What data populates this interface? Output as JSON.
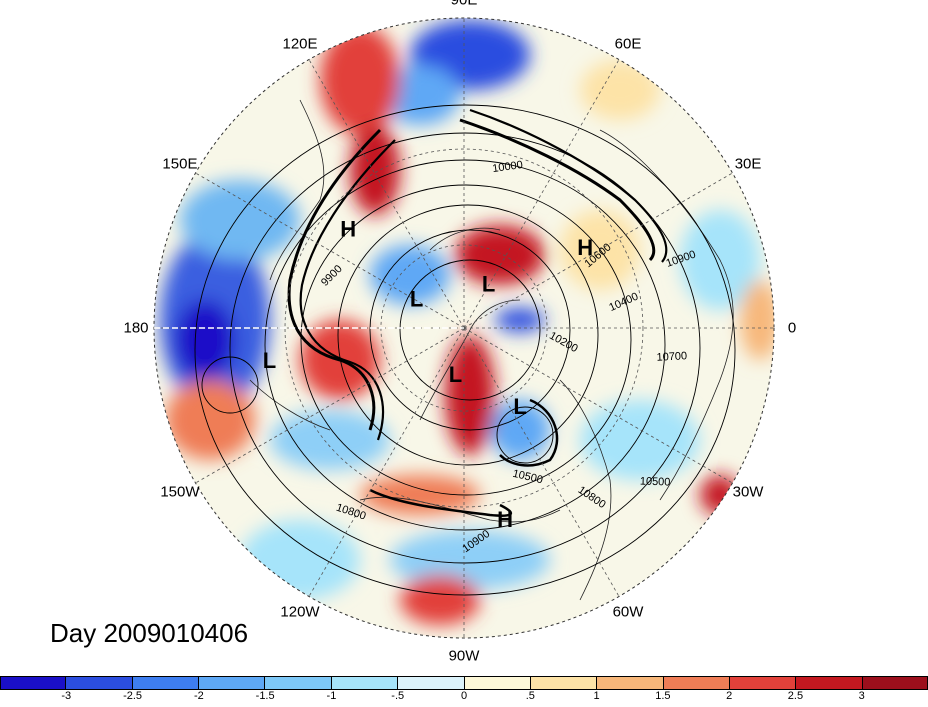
{
  "map": {
    "title": "Day 2009010406",
    "projection": "north polar stereographic",
    "longitude_labels": [
      {
        "text": "90E",
        "lon": 90
      },
      {
        "text": "60E",
        "lon": 60
      },
      {
        "text": "30E",
        "lon": 30
      },
      {
        "text": "0",
        "lon": 0
      },
      {
        "text": "30W",
        "lon": -30
      },
      {
        "text": "60W",
        "lon": -60
      },
      {
        "text": "90W",
        "lon": -90
      },
      {
        "text": "120W",
        "lon": -120
      },
      {
        "text": "150W",
        "lon": -150
      },
      {
        "text": "180",
        "lon": 180
      },
      {
        "text": "150E",
        "lon": 150
      },
      {
        "text": "120E",
        "lon": 120
      }
    ],
    "pressure_systems": [
      {
        "type": "H",
        "lon": 140,
        "lat": 38
      },
      {
        "type": "H",
        "lon": 33,
        "lat": 40
      },
      {
        "type": "H",
        "lon": -78,
        "lat": 25
      },
      {
        "type": "L",
        "lon": 150,
        "lat": 70
      },
      {
        "type": "L",
        "lon": 60,
        "lat": 72
      },
      {
        "type": "L",
        "lon": -170,
        "lat": 25
      },
      {
        "type": "L",
        "lon": -100,
        "lat": 72
      },
      {
        "type": "L",
        "lon": -55,
        "lat": 55
      }
    ],
    "contour_labels": [
      "9900",
      "10000",
      "10200",
      "10400",
      "10500",
      "10600",
      "10700",
      "10800",
      "10900",
      "10800",
      "10900",
      "10500"
    ]
  },
  "colorbar": {
    "ticks": [
      "-3",
      "-2.5",
      "-2",
      "-1.5",
      "-1",
      "-.5",
      "0",
      ".5",
      "1",
      "1.5",
      "2",
      "2.5",
      "3"
    ],
    "colors": [
      "#1a0fc8",
      "#2b4ee0",
      "#3e7ef0",
      "#5ea8f5",
      "#7ec8f7",
      "#a6e4fa",
      "#dcf3fb",
      "#fdf8d8",
      "#fde3a7",
      "#f7b77a",
      "#ef7d56",
      "#e2413a",
      "#c41820",
      "#9c0f1c"
    ]
  },
  "colors": {
    "contour": "#000000",
    "grid": "#555555",
    "coast": "#222222"
  }
}
